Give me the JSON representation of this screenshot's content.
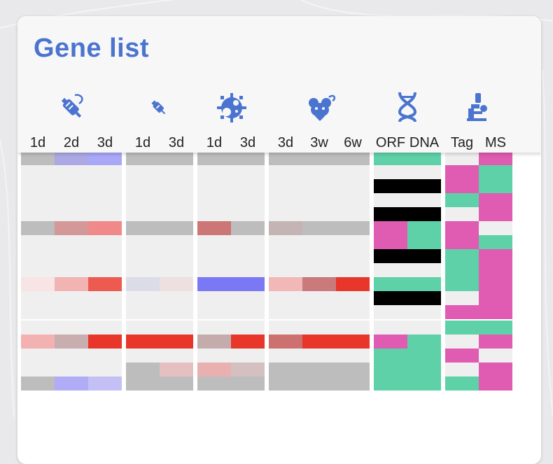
{
  "title": "Gene list",
  "colors": {
    "grey": "#bdbdbd",
    "light": "#efefef",
    "green": "#5fd1a8",
    "pink": "#e05bb2",
    "black": "#000000",
    "title_blue": "#4a74cf"
  },
  "groups": [
    {
      "icon": "syringe-icon",
      "labels": [
        "1d",
        "2d",
        "3d"
      ]
    },
    {
      "icon": "injection-icon",
      "labels": [
        "1d",
        "3d"
      ]
    },
    {
      "icon": "virus-icon",
      "labels": [
        "1d",
        "3d"
      ]
    },
    {
      "icon": "mouse-icon",
      "labels": [
        "3d",
        "3w",
        "6w"
      ]
    },
    {
      "icon": "dna-icon",
      "labels": [
        "ORF",
        "DNA"
      ]
    },
    {
      "icon": "microscope-icon",
      "labels": [
        "Tag",
        "MS"
      ]
    }
  ],
  "heatmap_rows": [
    [
      "#bdbdbd",
      "#aba8e4",
      "#a9a7f8",
      "#bdbdbd",
      "#bdbdbd",
      "#bdbdbd",
      "#bdbdbd",
      "#bdbdbd",
      "#bdbdbd",
      "#bdbdbd",
      "#5fd1a8",
      "#5fd1a8",
      "#efefef",
      "#e05bb2"
    ],
    [
      "#efefef",
      "#efefef",
      "#efefef",
      "#efefef",
      "#efefef",
      "#efefef",
      "#efefef",
      "#efefef",
      "#efefef",
      "#efefef",
      "#efefef",
      "#efefef",
      "#e05bb2",
      "#5fd1a8"
    ],
    [
      "#efefef",
      "#efefef",
      "#efefef",
      "#efefef",
      "#efefef",
      "#efefef",
      "#efefef",
      "#efefef",
      "#efefef",
      "#efefef",
      "#000000",
      "#000000",
      "#e05bb2",
      "#5fd1a8"
    ],
    [
      "#efefef",
      "#efefef",
      "#efefef",
      "#efefef",
      "#efefef",
      "#efefef",
      "#efefef",
      "#efefef",
      "#efefef",
      "#efefef",
      "#efefef",
      "#efefef",
      "#5fd1a8",
      "#e05bb2"
    ],
    [
      "#efefef",
      "#efefef",
      "#efefef",
      "#efefef",
      "#efefef",
      "#efefef",
      "#efefef",
      "#efefef",
      "#efefef",
      "#efefef",
      "#000000",
      "#000000",
      "#efefef",
      "#e05bb2"
    ],
    [
      "#bdbdbd",
      "#d49898",
      "#f08a8a",
      "#bdbdbd",
      "#bdbdbd",
      "#cd7676",
      "#bdbdbd",
      "#c4b4b4",
      "#bdbdbd",
      "#bdbdbd",
      "#e05bb2",
      "#5fd1a8",
      "#e05bb2",
      "#efefef"
    ],
    [
      "#efefef",
      "#efefef",
      "#efefef",
      "#efefef",
      "#efefef",
      "#efefef",
      "#efefef",
      "#efefef",
      "#efefef",
      "#efefef",
      "#e05bb2",
      "#5fd1a8",
      "#e05bb2",
      "#5fd1a8"
    ],
    [
      "#efefef",
      "#efefef",
      "#efefef",
      "#efefef",
      "#efefef",
      "#efefef",
      "#efefef",
      "#efefef",
      "#efefef",
      "#efefef",
      "#000000",
      "#000000",
      "#5fd1a8",
      "#e05bb2"
    ],
    [
      "#efefef",
      "#efefef",
      "#efefef",
      "#efefef",
      "#efefef",
      "#efefef",
      "#efefef",
      "#efefef",
      "#efefef",
      "#efefef",
      "#efefef",
      "#efefef",
      "#5fd1a8",
      "#e05bb2"
    ],
    [
      "#f8e4e4",
      "#f2b3b3",
      "#ec5a50",
      "#dcdce8",
      "#eee0e0",
      "#7a78f5",
      "#7a78f5",
      "#f2b8b8",
      "#ca7a7a",
      "#e8362a",
      "#5fd1a8",
      "#5fd1a8",
      "#5fd1a8",
      "#e05bb2"
    ],
    [
      "#efefef",
      "#efefef",
      "#efefef",
      "#efefef",
      "#efefef",
      "#efefef",
      "#efefef",
      "#efefef",
      "#efefef",
      "#efefef",
      "#000000",
      "#000000",
      "#efefef",
      "#e05bb2"
    ],
    [
      "#efefef",
      "#efefef",
      "#efefef",
      "#efefef",
      "#efefef",
      "#efefef",
      "#efefef",
      "#efefef",
      "#efefef",
      "#efefef",
      "#efefef",
      "#efefef",
      "#e05bb2",
      "#e05bb2"
    ],
    [
      "#efefef",
      "#efefef",
      "#efefef",
      "#efefef",
      "#efefef",
      "#efefef",
      "#efefef",
      "#efefef",
      "#efefef",
      "#efefef",
      "#efefef",
      "#efefef",
      "#5fd1a8",
      "#5fd1a8"
    ],
    [
      "#f4b1b1",
      "#c8aeae",
      "#e8362a",
      "#e8362a",
      "#e8362a",
      "#c4acac",
      "#e8362a",
      "#cd7070",
      "#e8362a",
      "#e8362a",
      "#e05bb2",
      "#5fd1a8",
      "#efefef",
      "#e05bb2"
    ],
    [
      "#efefef",
      "#efefef",
      "#efefef",
      "#efefef",
      "#efefef",
      "#efefef",
      "#efefef",
      "#efefef",
      "#efefef",
      "#efefef",
      "#5fd1a8",
      "#5fd1a8",
      "#e05bb2",
      "#efefef"
    ],
    [
      "#efefef",
      "#efefef",
      "#efefef",
      "#bdbdbd",
      "#e6c0c0",
      "#e9b0b0",
      "#d4c0c0",
      "#bdbdbd",
      "#bdbdbd",
      "#bdbdbd",
      "#5fd1a8",
      "#5fd1a8",
      "#efefef",
      "#e05bb2"
    ],
    [
      "#bdbdbd",
      "#b0acf6",
      "#c4c0f6",
      "#bdbdbd",
      "#bdbdbd",
      "#bdbdbd",
      "#bdbdbd",
      "#bdbdbd",
      "#bdbdbd",
      "#bdbdbd",
      "#5fd1a8",
      "#5fd1a8",
      "#5fd1a8",
      "#e05bb2"
    ]
  ]
}
